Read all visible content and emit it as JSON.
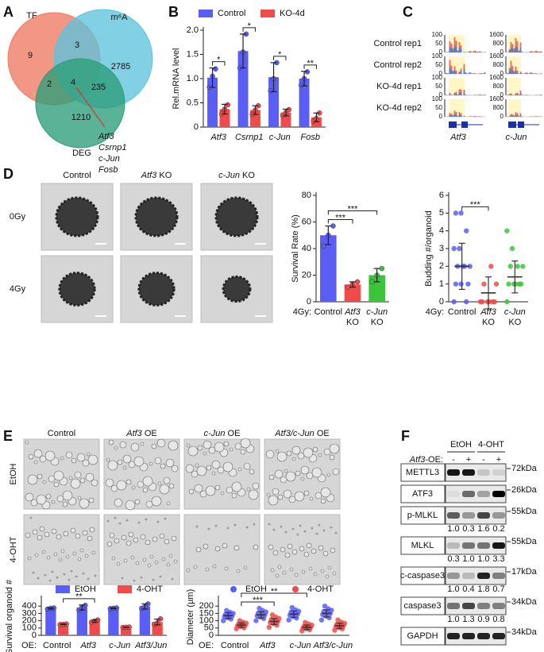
{
  "panel_labels": [
    "A",
    "B",
    "C",
    "D",
    "E",
    "F"
  ],
  "venn": {
    "sets": [
      "TF",
      "m⁶A",
      "DEG"
    ],
    "regions": [
      9,
      3,
      2785,
      2,
      4,
      235,
      1210
    ],
    "genes": [
      "Atf3",
      "Csrnp1",
      "c-Jun",
      "Fosb"
    ]
  },
  "tracks": {
    "rows": [
      "Control rep1",
      "Control rep2",
      "KO-4d rep1",
      "KO-4d rep2"
    ],
    "genes": [
      {
        "name": "Atf3",
        "scale": [
          100,
          50,
          0
        ]
      },
      {
        "name": "c-Jun",
        "scale": [
          1600,
          800,
          0
        ]
      }
    ]
  },
  "organoids_d": {
    "columns": [
      {
        "label": "Control"
      },
      {
        "gene": "Atf3",
        "suffix": " KO"
      },
      {
        "gene": "c-Jun",
        "suffix": " KO"
      }
    ],
    "rows": [
      "0Gy",
      "4Gy"
    ]
  },
  "organoids_e": {
    "columns": [
      {
        "label": "Control"
      },
      {
        "gene": "Atf3",
        "suffix": " OE"
      },
      {
        "gene": "c-Jun",
        "suffix": " OE"
      },
      {
        "gene": "Atf3/c-Jun",
        "suffix": " OE"
      }
    ],
    "rows": [
      "EtOH",
      "4-OHT"
    ]
  },
  "western": {
    "groups": [
      "EtOH",
      "4-OHT"
    ],
    "oe_label": {
      "gene": "Atf3",
      "suffix": "-OE:"
    },
    "oe": [
      "-",
      "+",
      "-",
      "+"
    ],
    "rows": [
      {
        "name": "METTL3",
        "kda": "72kDa"
      },
      {
        "name": "ATF3",
        "kda": "26kDa"
      },
      {
        "name": "p-MLKL",
        "kda": "55kDa",
        "quant": [
          "1.0",
          "0.3",
          "1.6",
          "0.2"
        ]
      },
      {
        "name": "MLKL",
        "kda": "55kDa",
        "quant": [
          "0.3",
          "1.0",
          "1.0",
          "3.3"
        ]
      },
      {
        "name": "c-caspase3",
        "kda": "17kDa",
        "quant": [
          "1.0",
          "0.4",
          "1.8",
          "0.7"
        ]
      },
      {
        "name": "caspase3",
        "kda": "34kDa",
        "quant": [
          "1.0",
          "1.3",
          "0.9",
          "0.8"
        ]
      },
      {
        "name": "GAPDH",
        "kda": "34kDa"
      }
    ]
  },
  "chart_data": [
    {
      "type": "bar",
      "ylabel": "Rel.mRNA level",
      "categories": [
        [
          "Atf3"
        ],
        [
          "Csrnp1"
        ],
        [
          "c-Jun"
        ],
        [
          "Fosb"
        ]
      ],
      "italic": [
        true,
        true,
        true,
        true
      ],
      "series": [
        {
          "name": "Control",
          "color": "#5b5ef5",
          "values": [
            1.02,
            1.57,
            1.03,
            1.0
          ],
          "errors": [
            0.2,
            0.35,
            0.3,
            0.15
          ],
          "points": [
            [
              0.82,
              1.05,
              1.2
            ],
            [
              1.22,
              1.55,
              1.92
            ],
            [
              0.75,
              1.0,
              1.33
            ],
            [
              0.86,
              1.0,
              1.14
            ]
          ]
        },
        {
          "name": "KO-4d",
          "color": "#f04a4a",
          "values": [
            0.37,
            0.35,
            0.3,
            0.2
          ],
          "errors": [
            0.1,
            0.09,
            0.07,
            0.09
          ],
          "points": [
            [
              0.27,
              0.37,
              0.46
            ],
            [
              0.26,
              0.35,
              0.44
            ],
            [
              0.24,
              0.3,
              0.36
            ],
            [
              0.12,
              0.18,
              0.29
            ]
          ]
        }
      ],
      "ylim": [
        0,
        2
      ],
      "yticks": [
        0,
        0.5,
        {
          "value": 1,
          "label": "1.0"
        },
        1.5,
        {
          "value": 2,
          "label": "2.0"
        }
      ],
      "brackets": [
        {
          "label": "*",
          "from": [
            0,
            0
          ],
          "to": [
            0,
            1
          ]
        },
        {
          "label": "*",
          "from": [
            1,
            0
          ],
          "to": [
            1,
            1
          ]
        },
        {
          "label": "*",
          "from": [
            2,
            0
          ],
          "to": [
            2,
            1
          ]
        },
        {
          "label": "**",
          "from": [
            3,
            0
          ],
          "to": [
            3,
            1
          ]
        }
      ]
    },
    {
      "type": "bar",
      "ylabel": "Survival Rate (%)",
      "x_prefix": "4Gy:",
      "categories": [
        [
          "Control"
        ],
        [
          "Atf3",
          "KO"
        ],
        [
          "c-Jun",
          "KO"
        ]
      ],
      "italic": [
        false,
        true,
        true
      ],
      "series": [
        {
          "color": [
            "#5b5ef5",
            "#f04a4a",
            "#3cc43c"
          ],
          "values": [
            50,
            13,
            20
          ],
          "errors": [
            7,
            2,
            5
          ],
          "points": [
            [
              42,
              50,
              57
            ],
            [
              11,
              13,
              15
            ],
            [
              15,
              20,
              25
            ]
          ]
        }
      ],
      "ylim": [
        0,
        80
      ],
      "yticks": [
        0,
        20,
        40,
        60,
        80
      ],
      "brackets": [
        {
          "label": "***",
          "from": [
            0,
            0
          ],
          "to": [
            1,
            0
          ]
        },
        {
          "label": "***",
          "from": [
            0,
            0
          ],
          "to": [
            2,
            0
          ]
        }
      ]
    },
    {
      "type": "scatter",
      "ylabel": "Budding #/organoid",
      "x_prefix": "4Gy:",
      "categories": [
        [
          "Control"
        ],
        [
          "Atf3",
          "KO"
        ],
        [
          "c-Jun",
          "KO"
        ]
      ],
      "italic": [
        false,
        true,
        true
      ],
      "series": [
        {
          "color": [
            "#5b5ef5",
            "#f04a4a",
            "#3cc43c"
          ],
          "values": [
            2,
            0.5,
            1.4
          ],
          "errors": [
            1.3,
            0.9,
            0.9
          ],
          "points": [
            [
              0,
              0,
              1,
              1,
              1,
              2,
              2,
              2,
              2,
              3,
              3,
              4,
              5,
              5
            ],
            [
              0,
              0,
              0,
              0,
              0,
              0,
              1,
              1,
              2
            ],
            [
              0,
              1,
              1,
              1,
              1,
              1,
              2,
              2,
              2,
              3,
              4
            ]
          ]
        }
      ],
      "ylim": [
        0,
        6
      ],
      "yticks": [
        0,
        1,
        2,
        3,
        4,
        5,
        6
      ],
      "brackets": [
        {
          "label": "***",
          "from": [
            0,
            0
          ],
          "to": [
            1,
            0
          ]
        }
      ]
    },
    {
      "type": "bar",
      "ylabel": "Survival organoid #",
      "x_prefix": "OE:",
      "categories": [
        [
          "Control"
        ],
        [
          "Atf3"
        ],
        [
          "c-Jun"
        ],
        [
          "Atf3/Jun"
        ]
      ],
      "italic": [
        false,
        true,
        true,
        true
      ],
      "series": [
        {
          "name": "EtOH",
          "color": "#5b5ef5",
          "values": [
            368,
            380,
            370,
            395
          ],
          "errors": [
            8,
            35,
            6,
            35
          ],
          "points": [
            [
              360,
              370,
              375
            ],
            [
              345,
              385,
              410
            ],
            [
              365,
              370,
              375
            ],
            [
              370,
              390,
              430
            ]
          ]
        },
        {
          "name": "4-OHT",
          "color": "#f04a4a",
          "values": [
            151,
            195,
            110,
            182
          ],
          "errors": [
            4,
            15,
            2,
            40
          ],
          "points": [
            [
              148,
              150,
              155
            ],
            [
              180,
              195,
              210
            ],
            [
              108,
              110,
              112
            ],
            [
              150,
              170,
              225
            ]
          ]
        }
      ],
      "ylim": [
        0,
        500
      ],
      "yticks": [
        0,
        100,
        200,
        300,
        400
      ],
      "brackets": [
        {
          "label": "**",
          "from": [
            0,
            1
          ],
          "to": [
            1,
            1
          ]
        }
      ]
    },
    {
      "type": "scatter",
      "ylabel": "Diameter (µm)",
      "x_prefix": "OE:",
      "categories": [
        [
          "Control"
        ],
        [
          "Atf3"
        ],
        [
          "c-Jun"
        ],
        [
          "Atf3/c-Jun"
        ]
      ],
      "italic": [
        false,
        true,
        true,
        true
      ],
      "series": [
        {
          "name": "EtOH",
          "color": "#5b5ef5",
          "values": [
            135,
            140,
            145,
            150
          ],
          "errors": [
            20,
            22,
            22,
            25
          ],
          "points": [
            [
              100,
              112,
              120,
              128,
              133,
              137,
              142,
              150,
              158,
              170
            ],
            [
              100,
              115,
              125,
              133,
              140,
              145,
              152,
              160,
              170,
              185
            ],
            [
              105,
              118,
              128,
              138,
              145,
              150,
              158,
              165,
              175,
              190
            ],
            [
              105,
              120,
              132,
              142,
              150,
              155,
              163,
              172,
              182,
              200
            ]
          ]
        },
        {
          "name": "4-OHT",
          "color": "#f04a4a",
          "values": [
            70,
            95,
            55,
            65
          ],
          "errors": [
            15,
            20,
            15,
            18
          ],
          "points": [
            [
              45,
              52,
              60,
              65,
              68,
              72,
              77,
              83,
              90,
              100
            ],
            [
              55,
              70,
              80,
              88,
              95,
              100,
              108,
              115,
              125,
              140
            ],
            [
              30,
              38,
              45,
              50,
              55,
              58,
              63,
              70,
              78,
              88
            ],
            [
              35,
              45,
              52,
              60,
              65,
              70,
              75,
              82,
              90,
              105
            ]
          ]
        }
      ],
      "ylim": [
        0,
        250
      ],
      "yticks": [
        0,
        50,
        100,
        150,
        200
      ],
      "brackets": [
        {
          "label": "***",
          "from": [
            0,
            1
          ],
          "to": [
            1,
            1
          ]
        },
        {
          "label": "**",
          "from": [
            0,
            1
          ],
          "to": [
            2,
            1
          ]
        }
      ]
    }
  ]
}
